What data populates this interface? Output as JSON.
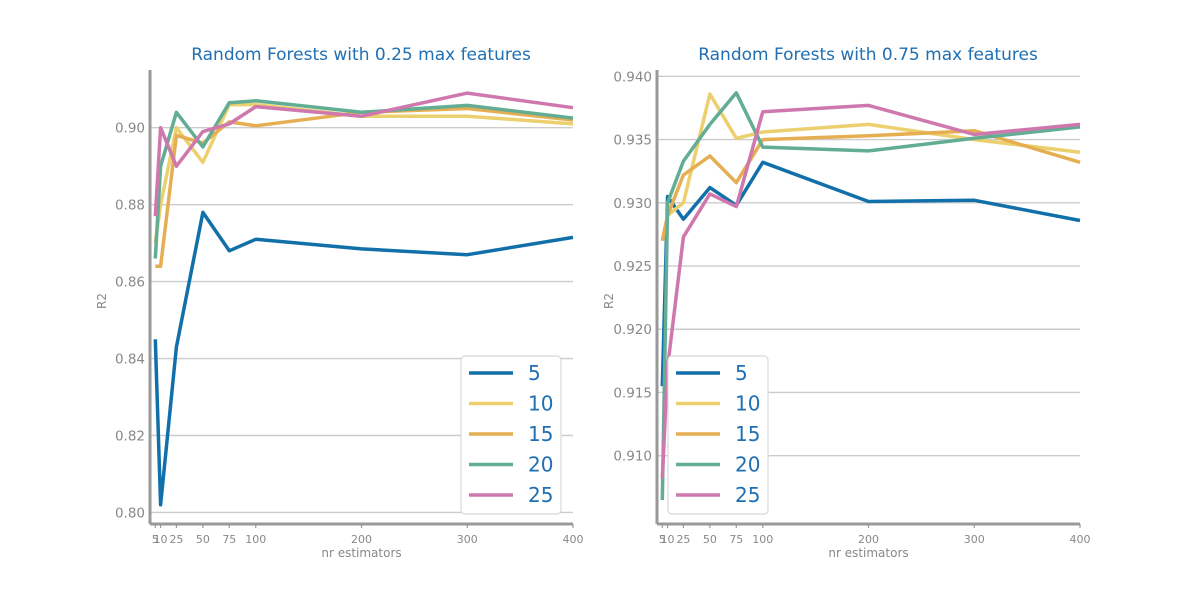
{
  "colors": {
    "title": "#1f6fb2",
    "axis": "#999999",
    "grid": "#cccccc",
    "tick_text": "#888888",
    "legend_text": "#1f6fb2",
    "series": {
      "5": "#1170aa",
      "10": "#eccf6e",
      "15": "#e6ae52",
      "20": "#62ad94",
      "25": "#cf78ae"
    }
  },
  "chart_data": [
    {
      "type": "line",
      "title": "Random Forests with 0.25 max features",
      "xlabel": "nr estimators",
      "ylabel": "R2",
      "x": [
        5,
        10,
        25,
        50,
        75,
        100,
        200,
        300,
        400
      ],
      "xticks": [
        5,
        10,
        25,
        50,
        75,
        100,
        200,
        300,
        400
      ],
      "xtick_labels": [
        "5",
        "10",
        "25",
        "50",
        "75",
        "100",
        "200",
        "300",
        "400"
      ],
      "yticks": [
        0.8,
        0.82,
        0.84,
        0.86,
        0.88,
        0.9
      ],
      "ytick_labels": [
        "0.80",
        "0.82",
        "0.84",
        "0.86",
        "0.88",
        "0.90"
      ],
      "xlim": [
        0,
        400
      ],
      "ylim": [
        0.797,
        0.915
      ],
      "grid": "horizontal",
      "legend_position": "lower right",
      "series": [
        {
          "name": "5",
          "values": [
            0.845,
            0.802,
            0.843,
            0.878,
            0.868,
            0.871,
            0.8685,
            0.867,
            0.8715
          ]
        },
        {
          "name": "10",
          "values": [
            0.87,
            0.88,
            0.9,
            0.891,
            0.906,
            0.906,
            0.903,
            0.903,
            0.901
          ]
        },
        {
          "name": "15",
          "values": [
            0.864,
            0.864,
            0.898,
            0.896,
            0.9015,
            0.9005,
            0.904,
            0.905,
            0.902
          ]
        },
        {
          "name": "20",
          "values": [
            0.866,
            0.89,
            0.904,
            0.895,
            0.9065,
            0.907,
            0.904,
            0.9058,
            0.9025
          ]
        },
        {
          "name": "25",
          "values": [
            0.877,
            0.9,
            0.89,
            0.899,
            0.901,
            0.9055,
            0.903,
            0.909,
            0.9052
          ]
        }
      ]
    },
    {
      "type": "line",
      "title": "Random Forests with 0.75 max features",
      "xlabel": "nr estimators",
      "ylabel": "R2",
      "x": [
        5,
        10,
        25,
        50,
        75,
        100,
        200,
        300,
        400
      ],
      "xticks": [
        5,
        10,
        25,
        50,
        75,
        100,
        200,
        300,
        400
      ],
      "xtick_labels": [
        "5",
        "10",
        "25",
        "50",
        "75",
        "100",
        "200",
        "300",
        "400"
      ],
      "yticks": [
        0.91,
        0.915,
        0.92,
        0.925,
        0.93,
        0.935,
        0.94
      ],
      "ytick_labels": [
        "0.910",
        "0.915",
        "0.920",
        "0.925",
        "0.930",
        "0.935",
        "0.940"
      ],
      "xlim": [
        0,
        400
      ],
      "ylim": [
        0.9046,
        0.9405
      ],
      "grid": "horizontal",
      "legend_position": "lower left",
      "series": [
        {
          "name": "5",
          "values": [
            0.9155,
            0.9305,
            0.9287,
            0.9312,
            0.9298,
            0.9332,
            0.9301,
            0.9302,
            0.9286
          ]
        },
        {
          "name": "10",
          "values": [
            0.927,
            0.929,
            0.93,
            0.9386,
            0.9351,
            0.9356,
            0.9362,
            0.935,
            0.934
          ]
        },
        {
          "name": "15",
          "values": [
            0.927,
            0.929,
            0.9322,
            0.9337,
            0.9316,
            0.935,
            0.9353,
            0.9357,
            0.9332
          ]
        },
        {
          "name": "20",
          "values": [
            0.9065,
            0.93,
            0.9333,
            0.9362,
            0.9387,
            0.9344,
            0.9341,
            0.9351,
            0.936
          ]
        },
        {
          "name": "25",
          "values": [
            0.9082,
            0.917,
            0.9273,
            0.9307,
            0.9297,
            0.9372,
            0.9377,
            0.9354,
            0.9362
          ]
        }
      ]
    }
  ]
}
